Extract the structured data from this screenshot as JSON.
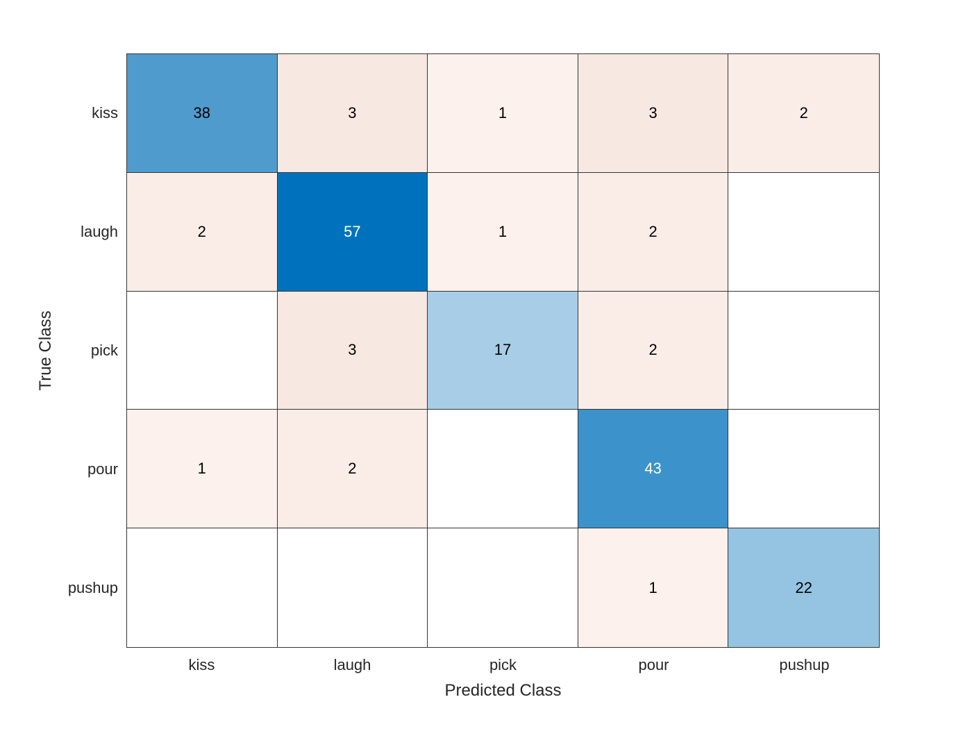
{
  "chart_data": {
    "type": "heatmap",
    "subtype": "confusion-matrix",
    "title": "",
    "xlabel": "Predicted Class",
    "ylabel": "True Class",
    "classes": [
      "kiss",
      "laugh",
      "pick",
      "pour",
      "pushup"
    ],
    "x_tick_labels": [
      "kiss",
      "laugh",
      "pick",
      "pour",
      "pushup"
    ],
    "y_tick_labels": [
      "kiss",
      "laugh",
      "pick",
      "pour",
      "pushup"
    ],
    "matrix": [
      [
        38,
        3,
        1,
        3,
        2
      ],
      [
        2,
        57,
        1,
        2,
        null
      ],
      [
        null,
        3,
        17,
        2,
        null
      ],
      [
        1,
        2,
        null,
        43,
        null
      ],
      [
        null,
        null,
        null,
        1,
        22
      ]
    ],
    "cell_colors": [
      [
        "#4f9bcd",
        "#f7e8e1",
        "#fcf1ec",
        "#f7e8e1",
        "#faede7"
      ],
      [
        "#faede7",
        "#0072bd",
        "#fcf1ec",
        "#faede7",
        "#ffffff"
      ],
      [
        "#ffffff",
        "#f7e8e1",
        "#a8cde6",
        "#faede7",
        "#ffffff"
      ],
      [
        "#fcf1ec",
        "#faede7",
        "#ffffff",
        "#3c93cb",
        "#ffffff"
      ],
      [
        "#ffffff",
        "#ffffff",
        "#ffffff",
        "#fcf1ec",
        "#94c4e1"
      ]
    ],
    "cell_text_colors": [
      [
        "#000000",
        "#000000",
        "#000000",
        "#000000",
        "#000000"
      ],
      [
        "#000000",
        "#ffffff",
        "#000000",
        "#000000",
        "#000000"
      ],
      [
        "#000000",
        "#000000",
        "#000000",
        "#000000",
        "#000000"
      ],
      [
        "#000000",
        "#000000",
        "#000000",
        "#ffffff",
        "#000000"
      ],
      [
        "#000000",
        "#000000",
        "#000000",
        "#000000",
        "#000000"
      ]
    ],
    "colors": {
      "diagonal_max": "#0072bd",
      "offdiagonal_tint": "#f7e8e1",
      "empty_cell": "#ffffff",
      "grid_line": "#333333",
      "axis_text": "#262626"
    },
    "grid": true,
    "legend": "none"
  }
}
